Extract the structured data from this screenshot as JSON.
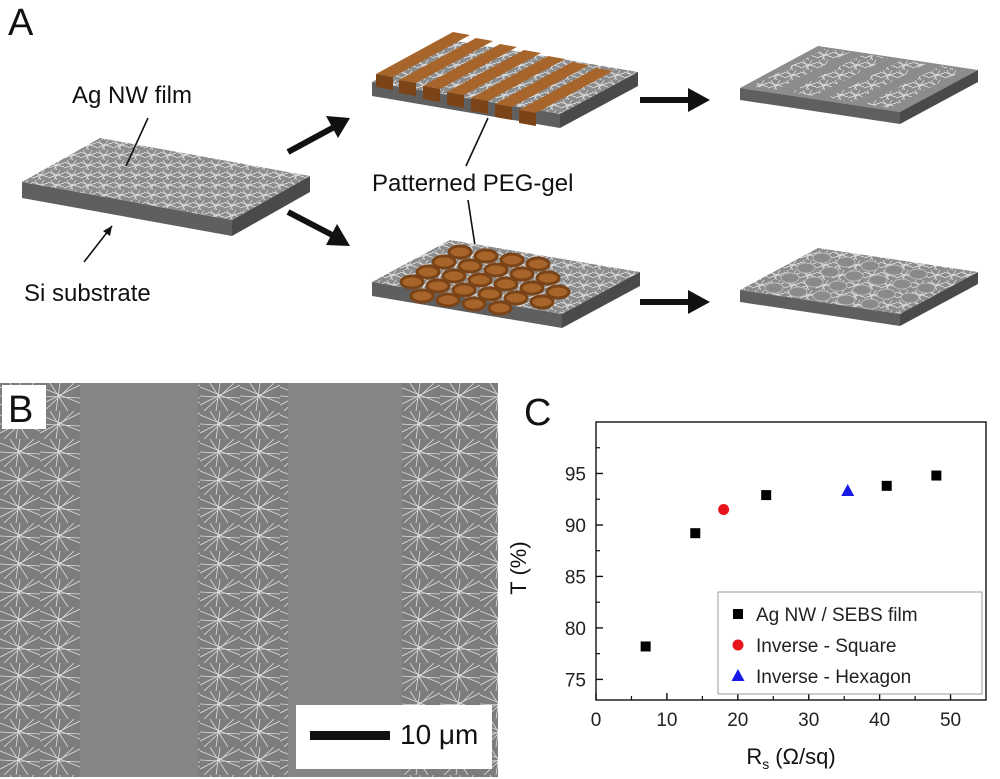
{
  "panel_a": {
    "letter": "A",
    "labels": {
      "agnw_film": "Ag NW film",
      "si_substrate": "Si substrate",
      "peg_gel": "Patterned PEG-gel"
    },
    "colors": {
      "substrate": "#8a8a8a",
      "gel": "#9a5a26",
      "nanowire": "#e6e6e6"
    }
  },
  "panel_b": {
    "letter": "B",
    "scale_bar_label": "10 μm"
  },
  "panel_c": {
    "letter": "C"
  },
  "chart_data": {
    "type": "scatter",
    "xlabel_main": "R",
    "xlabel_sub": "s",
    "xlabel_unit": "(Ω/sq)",
    "ylabel": "T (%)",
    "xlim": [
      0,
      55
    ],
    "ylim": [
      73,
      100
    ],
    "x_ticks": [
      0,
      10,
      20,
      30,
      40,
      50
    ],
    "y_ticks": [
      75,
      80,
      85,
      90,
      95
    ],
    "legend_position": "bottom-right",
    "series": [
      {
        "name": "Ag NW / SEBS film",
        "marker": "square",
        "color": "#000000",
        "points": [
          [
            7,
            78.2
          ],
          [
            14,
            89.2
          ],
          [
            24,
            92.9
          ],
          [
            41,
            93.8
          ],
          [
            48,
            94.8
          ]
        ]
      },
      {
        "name": "Inverse - Square",
        "marker": "circle",
        "color": "#e8141c",
        "points": [
          [
            18,
            91.5
          ]
        ]
      },
      {
        "name": "Inverse - Hexagon",
        "marker": "triangle",
        "color": "#1a1ae6",
        "points": [
          [
            35.5,
            93.3
          ]
        ]
      }
    ]
  }
}
